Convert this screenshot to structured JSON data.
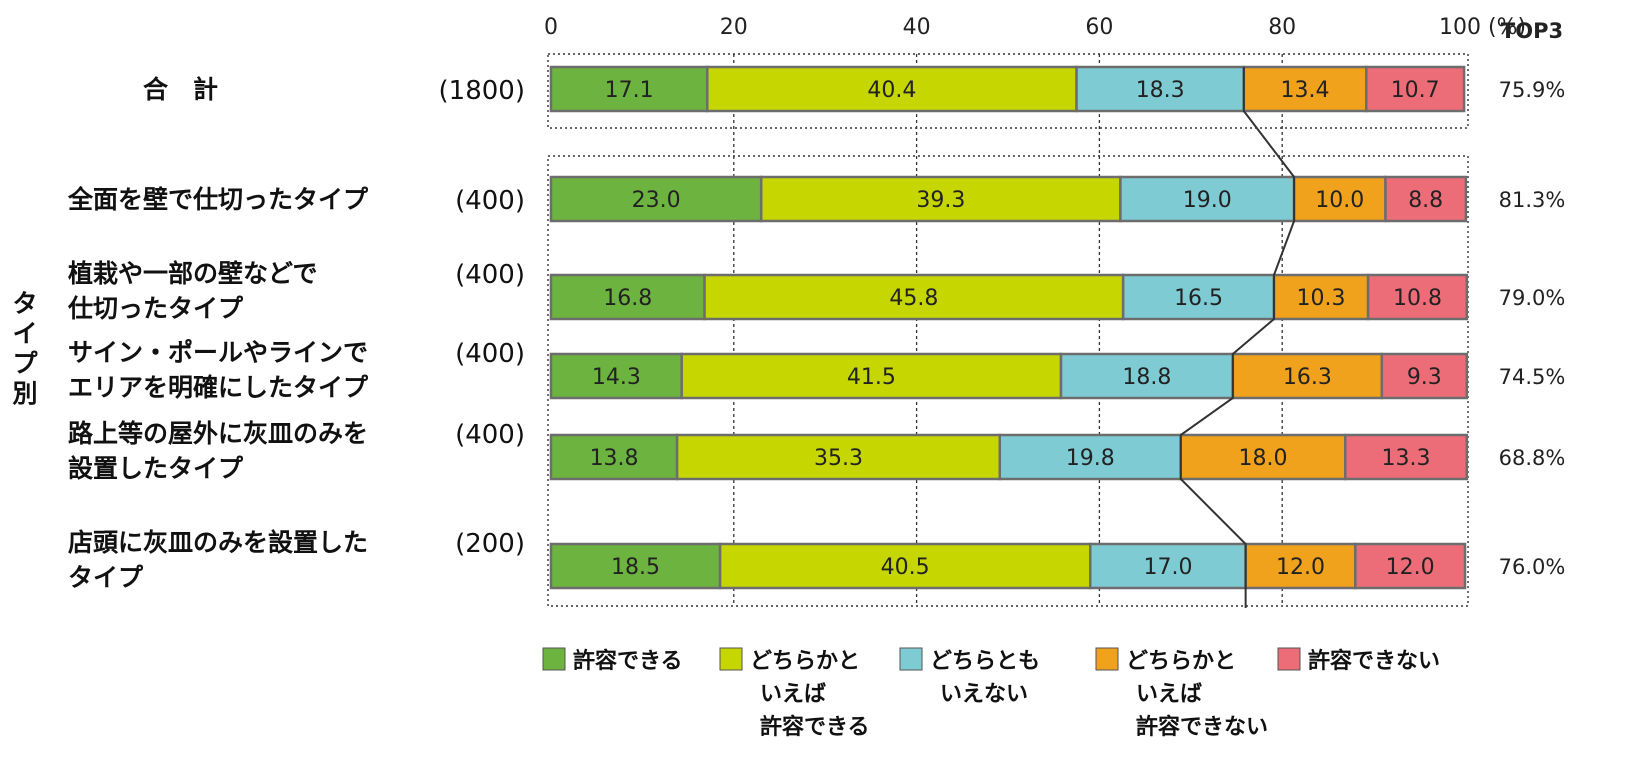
{
  "chart_data": {
    "type": "bar",
    "stacked": true,
    "orientation": "horizontal",
    "normalized_percent": true,
    "x_ticks": [
      "0",
      "20",
      "40",
      "60",
      "80",
      "100 (%)"
    ],
    "xlim": [
      0,
      100
    ],
    "top3_header": "TOP3",
    "group_label": "タイプ別",
    "legend_position": "bottom",
    "series": [
      {
        "name": "許容できる",
        "color": "#6db33f"
      },
      {
        "name": "どちらかといえば許容できる",
        "color": "#c6d600"
      },
      {
        "name": "どちらともいえない",
        "color": "#7fcbd4"
      },
      {
        "name": "どちらかといえば許容できない",
        "color": "#f0a21c"
      },
      {
        "name": "許容できない",
        "color": "#ec6c78"
      }
    ],
    "legend_lines": [
      [
        "許容できる"
      ],
      [
        "どちらかと",
        "いえば",
        "許容できる"
      ],
      [
        "どちらとも",
        "いえない"
      ],
      [
        "どちらかと",
        "いえば",
        "許容できない"
      ],
      [
        "許容できない"
      ]
    ],
    "rows": [
      {
        "label_lines": [
          "合　計"
        ],
        "n": "(1800)",
        "values": [
          17.1,
          40.4,
          18.3,
          13.4,
          10.7
        ],
        "top3": "75.9%"
      },
      {
        "label_lines": [
          "全面を壁で仕切ったタイプ"
        ],
        "n": "(400)",
        "values": [
          23.0,
          39.3,
          19.0,
          10.0,
          8.8
        ],
        "top3": "81.3%"
      },
      {
        "label_lines": [
          "植栽や一部の壁などで",
          "仕切ったタイプ"
        ],
        "n": "(400)",
        "values": [
          16.8,
          45.8,
          16.5,
          10.3,
          10.8
        ],
        "top3": "79.0%"
      },
      {
        "label_lines": [
          "サイン・ポールやラインで",
          "エリアを明確にしたタイプ"
        ],
        "n": "(400)",
        "values": [
          14.3,
          41.5,
          18.8,
          16.3,
          9.3
        ],
        "top3": "74.5%"
      },
      {
        "label_lines": [
          "路上等の屋外に灰皿のみを",
          "設置したタイプ"
        ],
        "n": "(400)",
        "values": [
          13.8,
          35.3,
          19.8,
          18.0,
          13.3
        ],
        "top3": "68.8%"
      },
      {
        "label_lines": [
          "店頭に灰皿のみを設置した",
          "タイプ"
        ],
        "n": "(200)",
        "values": [
          18.5,
          40.5,
          17.0,
          12.0,
          12.0
        ],
        "top3": "76.0%"
      }
    ]
  }
}
